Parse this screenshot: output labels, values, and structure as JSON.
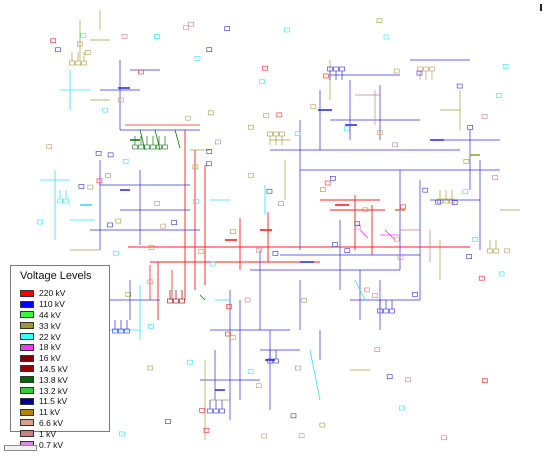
{
  "legend": {
    "title": "Voltage Levels",
    "items": [
      {
        "label": "220 kV",
        "color": "#ff0000"
      },
      {
        "label": "110 kV",
        "color": "#0000ff"
      },
      {
        "label": "44 kV",
        "color": "#33ff33"
      },
      {
        "label": "33 kV",
        "color": "#999933"
      },
      {
        "label": "22 kV",
        "color": "#33ffff"
      },
      {
        "label": "18 kV",
        "color": "#ff33ff"
      },
      {
        "label": "16 kV",
        "color": "#800000"
      },
      {
        "label": "14.5 kV",
        "color": "#990000"
      },
      {
        "label": "13.8 kV",
        "color": "#006600"
      },
      {
        "label": "13.2 kV",
        "color": "#33cc33"
      },
      {
        "label": "11.5 kV",
        "color": "#000099"
      },
      {
        "label": "11 kV",
        "color": "#b38600"
      },
      {
        "label": "6.6 kV",
        "color": "#d9a08c"
      },
      {
        "label": "1 kV",
        "color": "#cc8080"
      },
      {
        "label": "0.7 kV",
        "color": "#dd88dd"
      }
    ]
  }
}
